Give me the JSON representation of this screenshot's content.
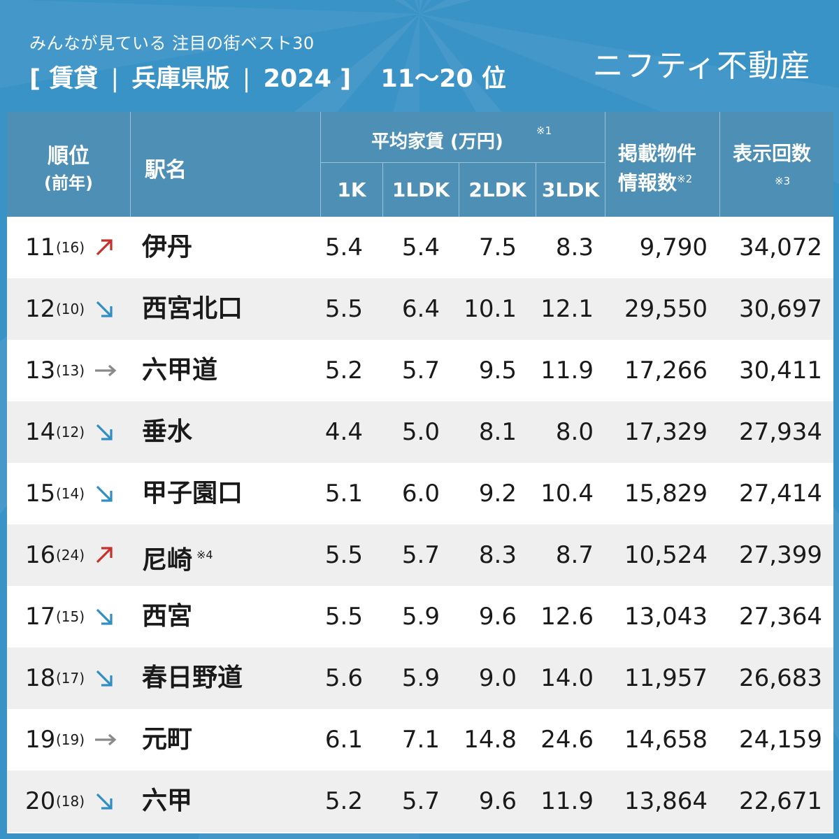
{
  "header": {
    "subtitle": "みんなが見ている 注目の街ベスト30",
    "title_bracket_open": "[",
    "title_part1": "賃貸",
    "title_sep": "|",
    "title_part2": "兵庫県版",
    "title_part3": "2024",
    "title_bracket_close": "]",
    "rank_range": "11〜20 位",
    "brand": "ニフティ不動産"
  },
  "columns": {
    "rank": "順位",
    "prev_year": "(前年)",
    "station": "駅名",
    "rent_group": "平均家賃 (万円)",
    "rent_note": "※1",
    "k1": "1K",
    "ldk1": "1LDK",
    "ldk2": "2LDK",
    "ldk3": "3LDK",
    "listings_l1": "掲載物件",
    "listings_l2": "情報数",
    "listings_note": "※2",
    "views": "表示回数",
    "views_note": "※3"
  },
  "colors": {
    "up": "#c8302c",
    "down": "#2f8fc4",
    "same": "#8a8a8a"
  },
  "rows": [
    {
      "rank": "11",
      "prev": "(16)",
      "trend": "up",
      "station": "伊丹",
      "note": "",
      "k1": "5.4",
      "ldk1": "5.4",
      "ldk2": "7.5",
      "ldk3": "8.3",
      "listings": "9,790",
      "views": "34,072"
    },
    {
      "rank": "12",
      "prev": "(10)",
      "trend": "down",
      "station": "西宮北口",
      "note": "",
      "k1": "5.5",
      "ldk1": "6.4",
      "ldk2": "10.1",
      "ldk3": "12.1",
      "listings": "29,550",
      "views": "30,697"
    },
    {
      "rank": "13",
      "prev": "(13)",
      "trend": "same",
      "station": "六甲道",
      "note": "",
      "k1": "5.2",
      "ldk1": "5.7",
      "ldk2": "9.5",
      "ldk3": "11.9",
      "listings": "17,266",
      "views": "30,411"
    },
    {
      "rank": "14",
      "prev": "(12)",
      "trend": "down",
      "station": "垂水",
      "note": "",
      "k1": "4.4",
      "ldk1": "5.0",
      "ldk2": "8.1",
      "ldk3": "8.0",
      "listings": "17,329",
      "views": "27,934"
    },
    {
      "rank": "15",
      "prev": "(14)",
      "trend": "down",
      "station": "甲子園口",
      "note": "",
      "k1": "5.1",
      "ldk1": "6.0",
      "ldk2": "9.2",
      "ldk3": "10.4",
      "listings": "15,829",
      "views": "27,414"
    },
    {
      "rank": "16",
      "prev": "(24)",
      "trend": "up",
      "station": "尼崎",
      "note": "※4",
      "k1": "5.5",
      "ldk1": "5.7",
      "ldk2": "8.3",
      "ldk3": "8.7",
      "listings": "10,524",
      "views": "27,399"
    },
    {
      "rank": "17",
      "prev": "(15)",
      "trend": "down",
      "station": "西宮",
      "note": "",
      "k1": "5.5",
      "ldk1": "5.9",
      "ldk2": "9.6",
      "ldk3": "12.6",
      "listings": "13,043",
      "views": "27,364"
    },
    {
      "rank": "18",
      "prev": "(17)",
      "trend": "down",
      "station": "春日野道",
      "note": "",
      "k1": "5.6",
      "ldk1": "5.9",
      "ldk2": "9.0",
      "ldk3": "14.0",
      "listings": "11,957",
      "views": "26,683"
    },
    {
      "rank": "19",
      "prev": "(19)",
      "trend": "same",
      "station": "元町",
      "note": "",
      "k1": "6.1",
      "ldk1": "7.1",
      "ldk2": "14.8",
      "ldk3": "24.6",
      "listings": "14,658",
      "views": "24,159"
    },
    {
      "rank": "20",
      "prev": "(18)",
      "trend": "down",
      "station": "六甲",
      "note": "",
      "k1": "5.2",
      "ldk1": "5.7",
      "ldk2": "9.6",
      "ldk3": "11.9",
      "listings": "13,864",
      "views": "22,671"
    }
  ]
}
